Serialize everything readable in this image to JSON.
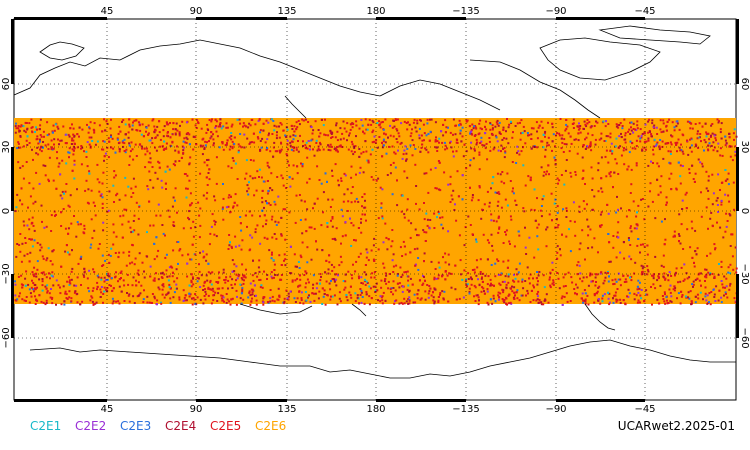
{
  "map": {
    "lon_ticks_top": [
      "45",
      "90",
      "135",
      "180",
      "−135",
      "−90",
      "−45"
    ],
    "lon_ticks_bottom": [
      "45",
      "90",
      "135",
      "180",
      "−135",
      "−90",
      "−45"
    ],
    "lat_ticks_left": [
      "60",
      "30",
      "0",
      "−30",
      "−60"
    ],
    "lat_ticks_right": [
      "60",
      "30",
      "0",
      "−30",
      "−60"
    ],
    "lon_range": [
      0,
      360
    ],
    "lat_range": [
      -90,
      90
    ],
    "occultation_band_lat": [
      -45,
      45
    ],
    "grid": "dotted"
  },
  "legend": [
    {
      "label": "C2E1",
      "color": "#19b9c9"
    },
    {
      "label": "C2E2",
      "color": "#9a2fd6"
    },
    {
      "label": "C2E3",
      "color": "#2a6fdc"
    },
    {
      "label": "C2E4",
      "color": "#b01030"
    },
    {
      "label": "C2E5",
      "color": "#e0141e"
    },
    {
      "label": "C2E6",
      "color": "#ffa500"
    }
  ],
  "dataset_label": "UCARwet2.2025-01"
}
